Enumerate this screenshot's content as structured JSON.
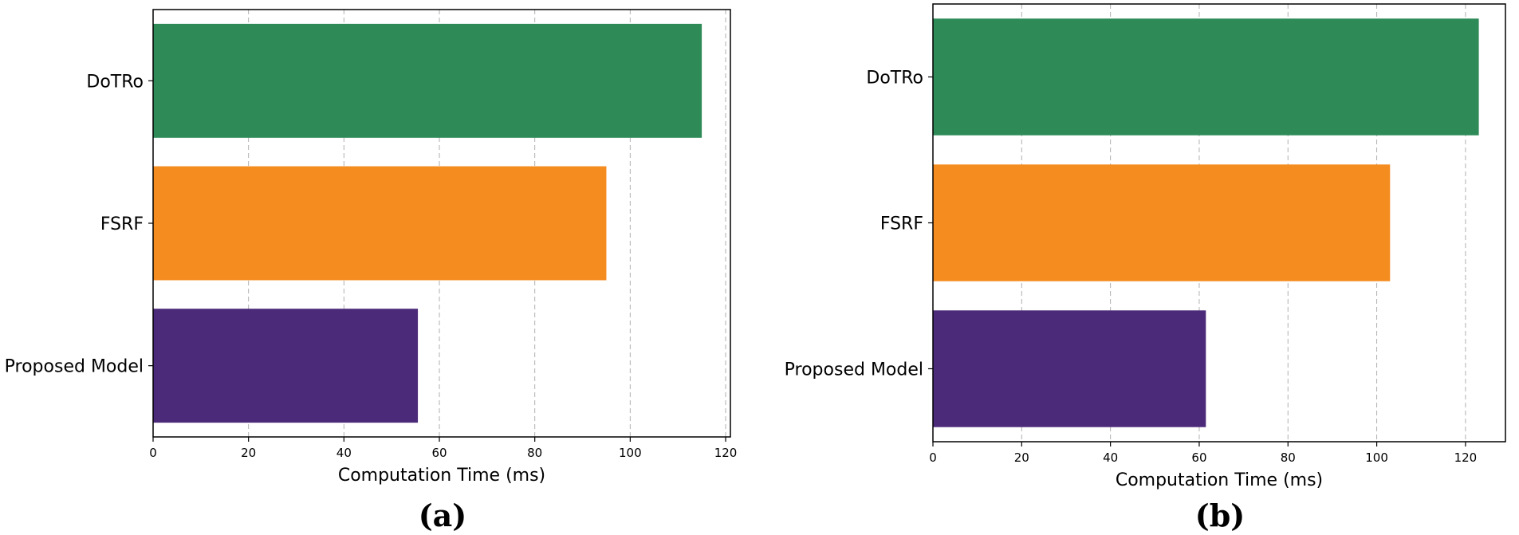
{
  "colors": {
    "DoTRo": "#2e8b57",
    "FSRF": "#f58c1f",
    "Proposed Model": "#4c2a7a"
  },
  "chart_data": [
    {
      "type": "bar",
      "orientation": "horizontal",
      "panel_label": "(a)",
      "categories": [
        "DoTRo",
        "FSRF",
        "Proposed Model"
      ],
      "values": [
        115,
        95,
        55.5
      ],
      "xlabel": "Computation Time (ms)",
      "ylabel": "",
      "xlim": [
        0,
        121
      ],
      "xticks": [
        0,
        20,
        40,
        60,
        80,
        100,
        120
      ],
      "grid": "x-dashed"
    },
    {
      "type": "bar",
      "orientation": "horizontal",
      "panel_label": "(b)",
      "categories": [
        "DoTRo",
        "FSRF",
        "Proposed Model"
      ],
      "values": [
        123,
        103,
        61.5
      ],
      "xlabel": "Computation Time (ms)",
      "ylabel": "",
      "xlim": [
        0,
        129
      ],
      "xticks": [
        0,
        20,
        40,
        60,
        80,
        100,
        120
      ],
      "grid": "x-dashed"
    }
  ]
}
